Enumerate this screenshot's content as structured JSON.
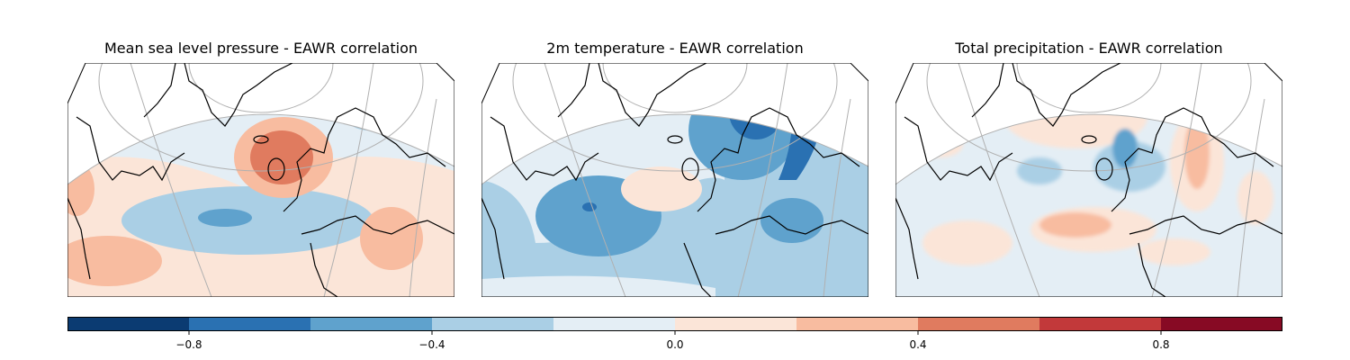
{
  "panels": [
    {
      "title": "Mean sea level pressure - EAWR correlation",
      "variable": "msl"
    },
    {
      "title": "2m temperature - EAWR correlation",
      "variable": "t2m"
    },
    {
      "title": "Total precipitation - EAWR correlation",
      "variable": "tp"
    }
  ],
  "colorbar": {
    "levels": [
      -1.0,
      -0.8,
      -0.6,
      -0.4,
      -0.2,
      0.0,
      0.2,
      0.4,
      0.6,
      0.8,
      1.0
    ],
    "colors": [
      "#0b3b72",
      "#2a71b2",
      "#5fa2cd",
      "#aacfe5",
      "#e4eef5",
      "#fbe5d8",
      "#f8bca0",
      "#e07b5f",
      "#c2393a",
      "#870a24"
    ],
    "ticks": [
      {
        "value": -0.8,
        "label": "−0.8"
      },
      {
        "value": -0.4,
        "label": "−0.4"
      },
      {
        "value": 0.0,
        "label": "0.0"
      },
      {
        "value": 0.4,
        "label": "0.4"
      },
      {
        "value": 0.8,
        "label": "0.8"
      }
    ]
  }
}
